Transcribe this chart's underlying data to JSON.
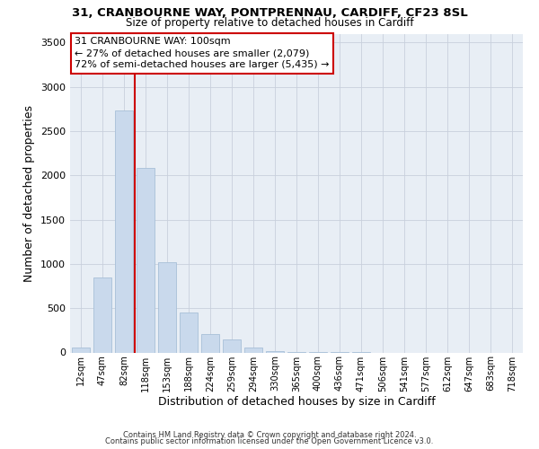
{
  "title": "31, CRANBOURNE WAY, PONTPRENNAU, CARDIFF, CF23 8SL",
  "subtitle": "Size of property relative to detached houses in Cardiff",
  "xlabel": "Distribution of detached houses by size in Cardiff",
  "ylabel": "Number of detached properties",
  "bar_color": "#c9d9ec",
  "bar_edge_color": "#a8c0d8",
  "plot_bg_color": "#e8eef5",
  "background_color": "#ffffff",
  "grid_color": "#c8d0dc",
  "annotation_box_edge_color": "#cc0000",
  "vline_color": "#cc0000",
  "annotation_text": "31 CRANBOURNE WAY: 100sqm\n← 27% of detached houses are smaller (2,079)\n72% of semi-detached houses are larger (5,435) →",
  "footer_line1": "Contains HM Land Registry data © Crown copyright and database right 2024.",
  "footer_line2": "Contains public sector information licensed under the Open Government Licence v3.0.",
  "categories": [
    "12sqm",
    "47sqm",
    "82sqm",
    "118sqm",
    "153sqm",
    "188sqm",
    "224sqm",
    "259sqm",
    "294sqm",
    "330sqm",
    "365sqm",
    "400sqm",
    "436sqm",
    "471sqm",
    "506sqm",
    "541sqm",
    "577sqm",
    "612sqm",
    "647sqm",
    "683sqm",
    "718sqm"
  ],
  "values": [
    55,
    850,
    2730,
    2080,
    1015,
    455,
    210,
    150,
    55,
    18,
    10,
    5,
    2,
    1,
    0,
    0,
    0,
    0,
    0,
    0,
    0
  ],
  "ylim": [
    0,
    3600
  ],
  "yticks": [
    0,
    500,
    1000,
    1500,
    2000,
    2500,
    3000,
    3500
  ],
  "vline_x": 2.5
}
